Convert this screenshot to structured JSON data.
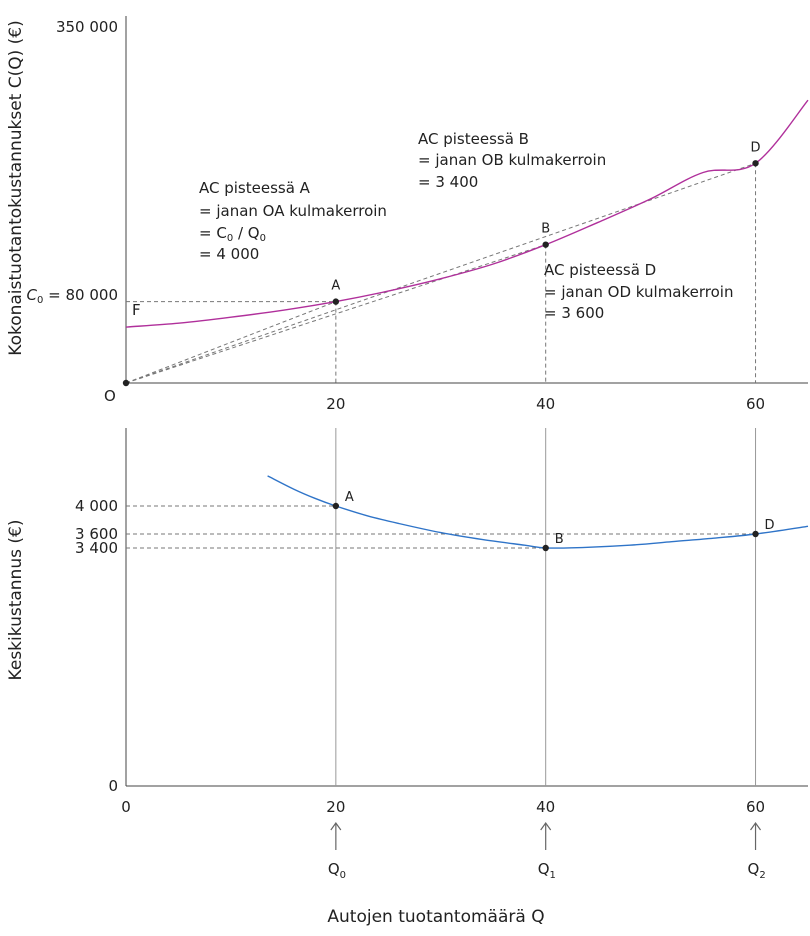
{
  "chart_data": [
    {
      "type": "line",
      "panel": "top",
      "ylabel": "Kokonaistuotantokustannukset C(Q) (€)",
      "xlim": [
        0,
        65
      ],
      "ylim": [
        0,
        350000
      ],
      "y_ticks": [
        {
          "value": 350000,
          "label": "350 000"
        }
      ],
      "x_ticks": [
        {
          "value": 20,
          "label": "20"
        },
        {
          "value": 40,
          "label": "40"
        },
        {
          "value": 60,
          "label": "60"
        }
      ],
      "origin_label": "O",
      "curve_label": "F",
      "c0": {
        "value": 80000,
        "label_sym": "C",
        "label_sub": "0",
        "label_rest": " = 80 000"
      },
      "color": "#b0309b",
      "series": [
        {
          "x": [
            0,
            5,
            10,
            15,
            20,
            25,
            30,
            35,
            40,
            45,
            50,
            55,
            60,
            65
          ],
          "y": [
            55000,
            58800,
            64700,
            71600,
            80000,
            90400,
            102500,
            117000,
            136000,
            158000,
            181000,
            207000,
            216000,
            278000
          ]
        }
      ],
      "points": [
        {
          "name": "A",
          "x": 20,
          "y": 80000
        },
        {
          "name": "B",
          "x": 40,
          "y": 136000
        },
        {
          "name": "D",
          "x": 60,
          "y": 216000
        }
      ],
      "annotations": {
        "A": {
          "line1": "AC pisteessä A",
          "line2": "= janan OA kulmakerroin",
          "line3_sym": "= C",
          "line3_sub": "0",
          "line3_mid": " / Q",
          "line3_sub2": "0",
          "line4": "= 4 000"
        },
        "B": {
          "line1": "AC pisteessä B",
          "line2": "= janan OB kulmakerroin",
          "line3": "= 3 400"
        },
        "D": {
          "line1": "AC pisteessä D",
          "line2": "= janan OD kulmakerroin",
          "line3": "= 3 600"
        }
      }
    },
    {
      "type": "line",
      "panel": "bottom",
      "xlabel": "Autojen tuotantomäärä Q",
      "ylabel": "Keskikustannus (€)",
      "xlim": [
        0,
        65
      ],
      "y_ticks": [
        {
          "value": 0,
          "label": "0"
        },
        {
          "value": 3400,
          "label": "3 400"
        },
        {
          "value": 3600,
          "label": "3 600"
        },
        {
          "value": 4000,
          "label": "4 000"
        }
      ],
      "x_ticks": [
        {
          "value": 0,
          "label": "0"
        },
        {
          "value": 20,
          "label": "20"
        },
        {
          "value": 40,
          "label": "40"
        },
        {
          "value": 60,
          "label": "60"
        }
      ],
      "color": "#2f74c8",
      "series": [
        {
          "x": [
            13.5,
            16,
            18,
            20,
            23,
            26,
            30,
            34,
            38,
            40,
            44,
            48,
            52,
            56,
            60,
            65
          ],
          "y": [
            4430,
            4240,
            4110,
            4000,
            3860,
            3750,
            3620,
            3520,
            3440,
            3400,
            3410,
            3440,
            3490,
            3540,
            3600,
            3710
          ]
        }
      ],
      "points": [
        {
          "name": "A",
          "x": 20,
          "y": 4000
        },
        {
          "name": "B",
          "x": 40,
          "y": 3400
        },
        {
          "name": "D",
          "x": 60,
          "y": 3600
        }
      ],
      "q_markers": [
        {
          "x": 20,
          "sym": "Q",
          "sub": "0"
        },
        {
          "x": 40,
          "sym": "Q",
          "sub": "1"
        },
        {
          "x": 60,
          "sym": "Q",
          "sub": "2"
        }
      ]
    }
  ]
}
